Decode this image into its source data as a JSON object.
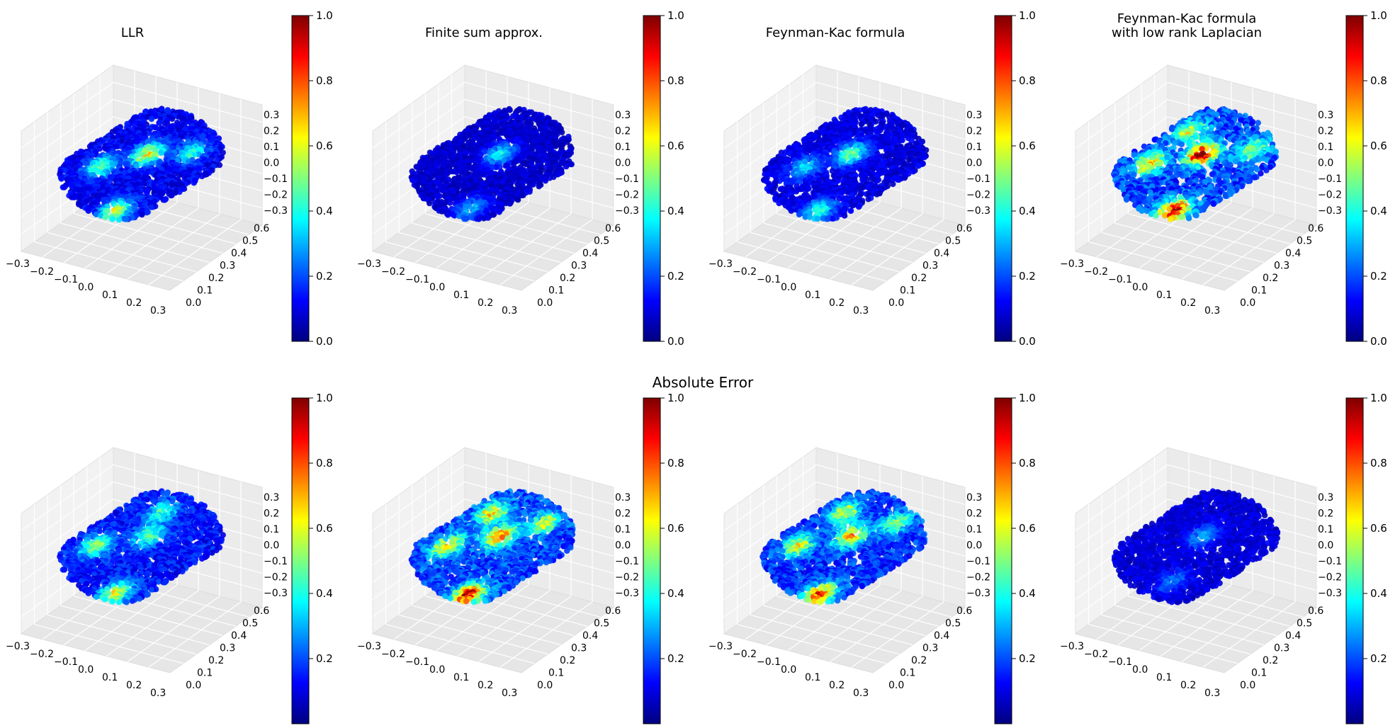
{
  "figure": {
    "middle_title": "Absolute Error"
  },
  "colormap": {
    "name": "jet",
    "stops": [
      "#00007f",
      "#0000ff",
      "#007fff",
      "#00ffff",
      "#7fff7f",
      "#ffff00",
      "#ff7f00",
      "#ff0000",
      "#7f0000"
    ]
  },
  "axis_ticks": {
    "x": [
      "−0.3",
      "−0.2",
      "−0.1",
      "0.0",
      "0.1",
      "0.2",
      "0.3"
    ],
    "y": [
      "0.0",
      "0.1",
      "0.2",
      "0.3",
      "0.4",
      "0.5",
      "0.6"
    ],
    "z": [
      "−0.3",
      "−0.2",
      "−0.1",
      "0.0",
      "0.1",
      "0.2",
      "0.3"
    ]
  },
  "colorbar_ticks": {
    "top": [
      "0.0",
      "0.2",
      "0.4",
      "0.6",
      "0.8",
      "1.0"
    ],
    "bottom": [
      "0.2",
      "0.4",
      "0.6",
      "0.8",
      "1.0"
    ]
  },
  "chart_data": [
    {
      "type": "scatter",
      "row": "top",
      "title": "LLR",
      "xlim": [
        -0.3,
        0.3
      ],
      "ylim": [
        0.0,
        0.6
      ],
      "zlim": [
        -0.3,
        0.3
      ],
      "colorbar": [
        0,
        1
      ],
      "hotspots": [
        {
          "u": 0.58,
          "v": 0.45,
          "value": 0.62
        },
        {
          "u": 0.12,
          "v": 0.8,
          "value": 0.55
        },
        {
          "u": 0.3,
          "v": 0.28,
          "value": 0.4
        },
        {
          "u": 0.78,
          "v": 0.7,
          "value": 0.35
        }
      ],
      "base": 0.12
    },
    {
      "type": "scatter",
      "row": "top",
      "title": "Finite sum approx.",
      "xlim": [
        -0.3,
        0.3
      ],
      "ylim": [
        0.0,
        0.6
      ],
      "zlim": [
        -0.3,
        0.3
      ],
      "colorbar": [
        0,
        1
      ],
      "hotspots": [
        {
          "u": 0.58,
          "v": 0.45,
          "value": 0.35
        },
        {
          "u": 0.15,
          "v": 0.8,
          "value": 0.28
        }
      ],
      "base": 0.08
    },
    {
      "type": "scatter",
      "row": "top",
      "title": "Feynman-Kac formula",
      "xlim": [
        -0.3,
        0.3
      ],
      "ylim": [
        0.0,
        0.6
      ],
      "zlim": [
        -0.3,
        0.3
      ],
      "colorbar": [
        0,
        1
      ],
      "hotspots": [
        {
          "u": 0.58,
          "v": 0.45,
          "value": 0.45
        },
        {
          "u": 0.12,
          "v": 0.8,
          "value": 0.4
        },
        {
          "u": 0.3,
          "v": 0.3,
          "value": 0.3
        }
      ],
      "base": 0.1
    },
    {
      "type": "scatter",
      "row": "top",
      "title": "Feynman-Kac formula",
      "title2": "with low rank Laplacian",
      "xlim": [
        -0.3,
        0.3
      ],
      "ylim": [
        0.0,
        0.6
      ],
      "zlim": [
        -0.3,
        0.3
      ],
      "colorbar": [
        0,
        1
      ],
      "hotspots": [
        {
          "u": 0.58,
          "v": 0.45,
          "value": 0.95
        },
        {
          "u": 0.14,
          "v": 0.82,
          "value": 0.92
        },
        {
          "u": 0.3,
          "v": 0.22,
          "value": 0.55
        },
        {
          "u": 0.65,
          "v": 0.15,
          "value": 0.45
        },
        {
          "u": 0.82,
          "v": 0.72,
          "value": 0.4
        }
      ],
      "base": 0.2
    },
    {
      "type": "scatter",
      "row": "bottom",
      "title": "",
      "xlim": [
        -0.3,
        0.3
      ],
      "ylim": [
        0.0,
        0.6
      ],
      "zlim": [
        -0.3,
        0.3
      ],
      "colorbar": [
        0,
        1
      ],
      "hotspots": [
        {
          "u": 0.12,
          "v": 0.8,
          "value": 0.55
        },
        {
          "u": 0.58,
          "v": 0.45,
          "value": 0.4
        },
        {
          "u": 0.3,
          "v": 0.22,
          "value": 0.45
        },
        {
          "u": 0.78,
          "v": 0.3,
          "value": 0.35
        }
      ],
      "base": 0.15
    },
    {
      "type": "scatter",
      "row": "bottom",
      "title": "",
      "xlim": [
        -0.3,
        0.3
      ],
      "ylim": [
        0.0,
        0.6
      ],
      "zlim": [
        -0.3,
        0.3
      ],
      "colorbar": [
        0,
        1
      ],
      "hotspots": [
        {
          "u": 0.12,
          "v": 0.82,
          "value": 0.82
        },
        {
          "u": 0.58,
          "v": 0.45,
          "value": 0.7
        },
        {
          "u": 0.3,
          "v": 0.22,
          "value": 0.55
        },
        {
          "u": 0.68,
          "v": 0.18,
          "value": 0.55
        },
        {
          "u": 0.85,
          "v": 0.6,
          "value": 0.45
        }
      ],
      "base": 0.2
    },
    {
      "type": "scatter",
      "row": "bottom",
      "title": "",
      "xlim": [
        -0.3,
        0.3
      ],
      "ylim": [
        0.0,
        0.6
      ],
      "zlim": [
        -0.3,
        0.3
      ],
      "colorbar": [
        0,
        1
      ],
      "hotspots": [
        {
          "u": 0.12,
          "v": 0.82,
          "value": 0.75
        },
        {
          "u": 0.58,
          "v": 0.45,
          "value": 0.62
        },
        {
          "u": 0.3,
          "v": 0.22,
          "value": 0.5
        },
        {
          "u": 0.68,
          "v": 0.18,
          "value": 0.5
        },
        {
          "u": 0.85,
          "v": 0.6,
          "value": 0.4
        }
      ],
      "base": 0.18
    },
    {
      "type": "scatter",
      "row": "bottom",
      "title": "",
      "xlim": [
        -0.3,
        0.3
      ],
      "ylim": [
        0.0,
        0.6
      ],
      "zlim": [
        -0.3,
        0.3
      ],
      "colorbar": [
        0,
        1
      ],
      "hotspots": [
        {
          "u": 0.58,
          "v": 0.45,
          "value": 0.25
        },
        {
          "u": 0.2,
          "v": 0.7,
          "value": 0.18
        }
      ],
      "base": 0.09
    }
  ]
}
